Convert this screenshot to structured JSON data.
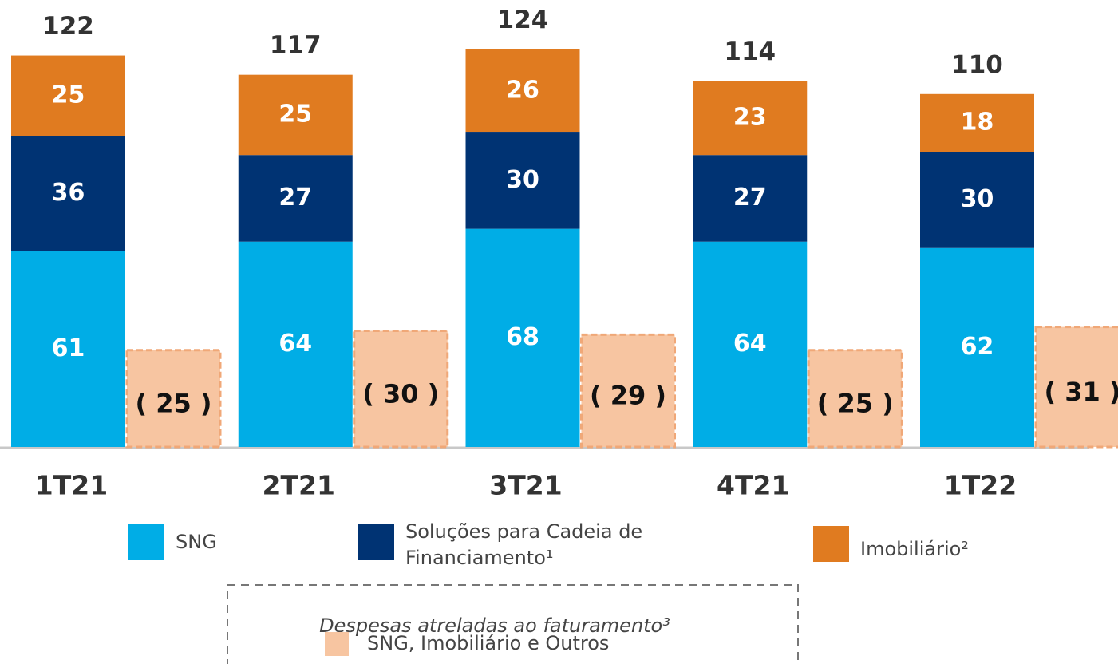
{
  "chart_data": {
    "type": "stacked_bar",
    "categories": [
      "1T21",
      "2T21",
      "3T21",
      "4T21",
      "1T22"
    ],
    "series": [
      {
        "name": "SNG",
        "color": "#00ade6",
        "values": [
          61,
          64,
          68,
          64,
          62
        ]
      },
      {
        "name": "Soluções para Cadeia de Financiamento¹",
        "color": "#003373",
        "values": [
          36,
          27,
          30,
          27,
          30
        ]
      },
      {
        "name": "Imobiliário²",
        "color": "#e07b20",
        "values": [
          25,
          25,
          26,
          23,
          18
        ]
      }
    ],
    "totals": [
      122,
      117,
      124,
      114,
      110
    ],
    "expenses": {
      "title": "Despesas atreladas ao faturamento³",
      "name": "SNG, Imobiliário e Outros",
      "color": "#f7c5a1",
      "values": [
        25,
        30,
        29,
        25,
        31
      ],
      "value_labels": [
        "( 25 )",
        "( 30 )",
        "( 29 )",
        "( 25 )",
        "( 31 )"
      ]
    }
  }
}
